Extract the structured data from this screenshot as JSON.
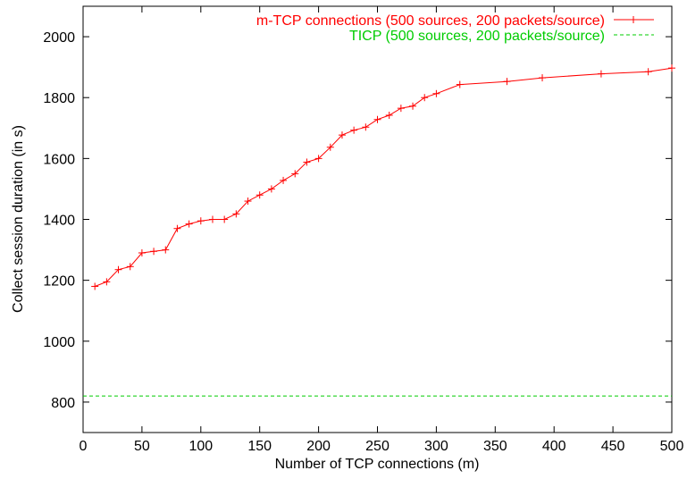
{
  "chart_data": {
    "type": "line",
    "title": "",
    "xlabel": "Number of TCP connections (m)",
    "ylabel": "Collect session duration (in s)",
    "xlim": [
      0,
      500
    ],
    "ylim": [
      700,
      2100
    ],
    "xticks": [
      0,
      50,
      100,
      150,
      200,
      250,
      300,
      350,
      400,
      450,
      500
    ],
    "yticks": [
      800,
      1000,
      1200,
      1400,
      1600,
      1800,
      2000
    ],
    "grid": false,
    "legend_position": "top-right",
    "series": [
      {
        "name": "m-TCP connections (500 sources, 200 packets/source)",
        "color": "#ff0000",
        "style": "line-with-plus-markers",
        "x": [
          10,
          20,
          30,
          40,
          50,
          60,
          70,
          80,
          90,
          100,
          110,
          120,
          130,
          140,
          150,
          160,
          170,
          180,
          190,
          200,
          210,
          220,
          230,
          240,
          250,
          260,
          270,
          280,
          290,
          300,
          320,
          360,
          390,
          440,
          480,
          500
        ],
        "y": [
          1180,
          1195,
          1235,
          1245,
          1290,
          1295,
          1300,
          1370,
          1385,
          1395,
          1400,
          1400,
          1418,
          1460,
          1480,
          1500,
          1528,
          1550,
          1588,
          1600,
          1637,
          1677,
          1693,
          1703,
          1728,
          1742,
          1765,
          1772,
          1800,
          1813,
          1843,
          1853,
          1865,
          1878,
          1885,
          1897
        ]
      },
      {
        "name": "TICP (500 sources, 200 packets/source)",
        "color": "#00cc00",
        "style": "dashed-line",
        "x": [
          0,
          500
        ],
        "y": [
          820,
          820
        ]
      }
    ]
  }
}
